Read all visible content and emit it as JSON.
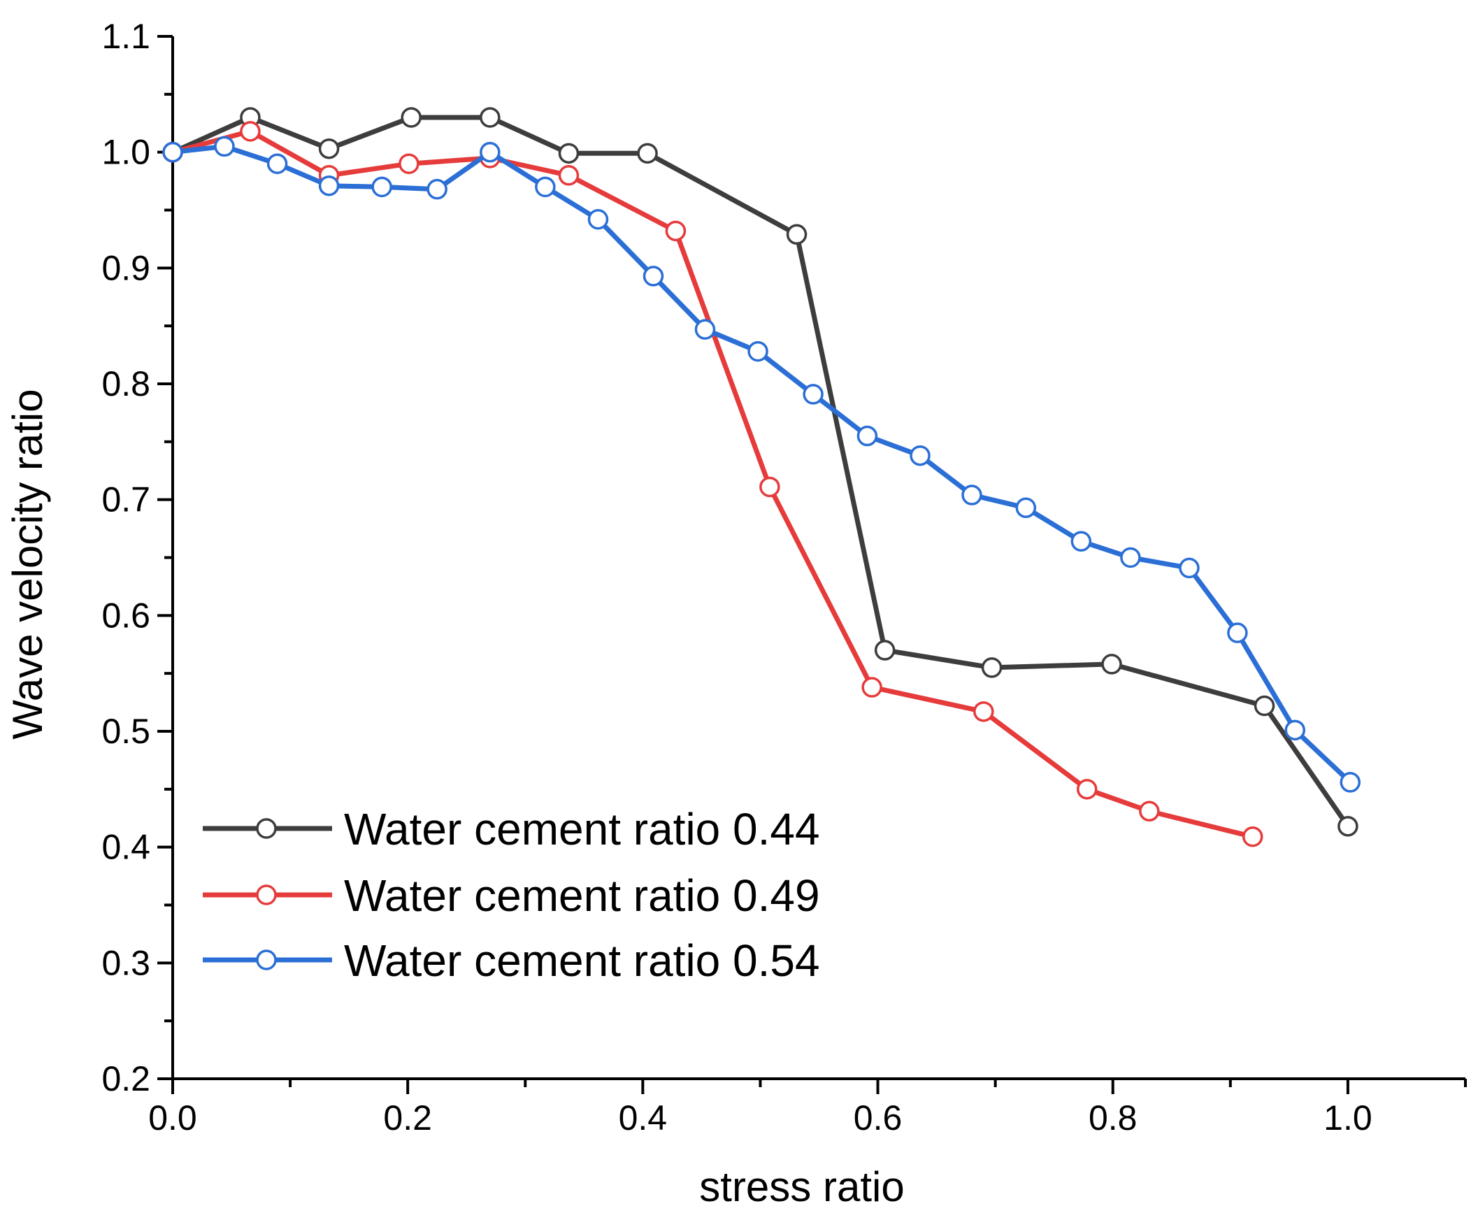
{
  "chart_data": {
    "type": "line",
    "title": "",
    "xlabel": "stress ratio",
    "ylabel": "Wave velocity ratio",
    "xlim": [
      0.0,
      1.1
    ],
    "ylim": [
      0.2,
      1.1
    ],
    "xticks": [
      0.0,
      0.2,
      0.4,
      0.6,
      0.8,
      1.0
    ],
    "xtick_labels": [
      "0.0",
      "0.2",
      "0.4",
      "0.6",
      "0.8",
      "1.0"
    ],
    "yticks": [
      0.2,
      0.3,
      0.4,
      0.5,
      0.6,
      0.7,
      0.8,
      0.9,
      1.0,
      1.1
    ],
    "ytick_labels": [
      "0.2",
      "0.3",
      "0.4",
      "0.5",
      "0.6",
      "0.7",
      "0.8",
      "0.9",
      "1.0",
      "1.1"
    ],
    "grid": false,
    "legend_position": "bottom-left",
    "series": [
      {
        "name": "Water cement ratio 0.44",
        "color": "#3d3d3d",
        "marker": "open-circle",
        "points": [
          [
            0.0,
            1.0
          ],
          [
            0.066,
            1.03
          ],
          [
            0.133,
            1.003
          ],
          [
            0.203,
            1.03
          ],
          [
            0.27,
            1.03
          ],
          [
            0.337,
            0.999
          ],
          [
            0.404,
            0.999
          ],
          [
            0.531,
            0.929
          ],
          [
            0.606,
            0.57
          ],
          [
            0.697,
            0.555
          ],
          [
            0.799,
            0.558
          ],
          [
            0.929,
            0.522
          ],
          [
            1.0,
            0.418
          ]
        ]
      },
      {
        "name": "Water cement ratio 0.49",
        "color": "#e63b3b",
        "marker": "open-circle",
        "points": [
          [
            0.0,
            1.0
          ],
          [
            0.066,
            1.018
          ],
          [
            0.133,
            0.98
          ],
          [
            0.201,
            0.99
          ],
          [
            0.27,
            0.995
          ],
          [
            0.337,
            0.98
          ],
          [
            0.428,
            0.932
          ],
          [
            0.508,
            0.711
          ],
          [
            0.595,
            0.538
          ],
          [
            0.69,
            0.517
          ],
          [
            0.778,
            0.45
          ],
          [
            0.831,
            0.431
          ],
          [
            0.919,
            0.409
          ]
        ]
      },
      {
        "name": "Water cement ratio 0.54",
        "color": "#2b6fd6",
        "marker": "open-circle",
        "points": [
          [
            0.0,
            1.0
          ],
          [
            0.044,
            1.005
          ],
          [
            0.089,
            0.99
          ],
          [
            0.133,
            0.971
          ],
          [
            0.178,
            0.97
          ],
          [
            0.225,
            0.968
          ],
          [
            0.27,
            1.0
          ],
          [
            0.317,
            0.97
          ],
          [
            0.362,
            0.942
          ],
          [
            0.409,
            0.893
          ],
          [
            0.453,
            0.847
          ],
          [
            0.498,
            0.828
          ],
          [
            0.545,
            0.791
          ],
          [
            0.591,
            0.755
          ],
          [
            0.636,
            0.738
          ],
          [
            0.68,
            0.704
          ],
          [
            0.726,
            0.693
          ],
          [
            0.773,
            0.664
          ],
          [
            0.815,
            0.65
          ],
          [
            0.865,
            0.641
          ],
          [
            0.906,
            0.585
          ],
          [
            0.955,
            0.501
          ],
          [
            1.002,
            0.456
          ]
        ]
      }
    ]
  }
}
